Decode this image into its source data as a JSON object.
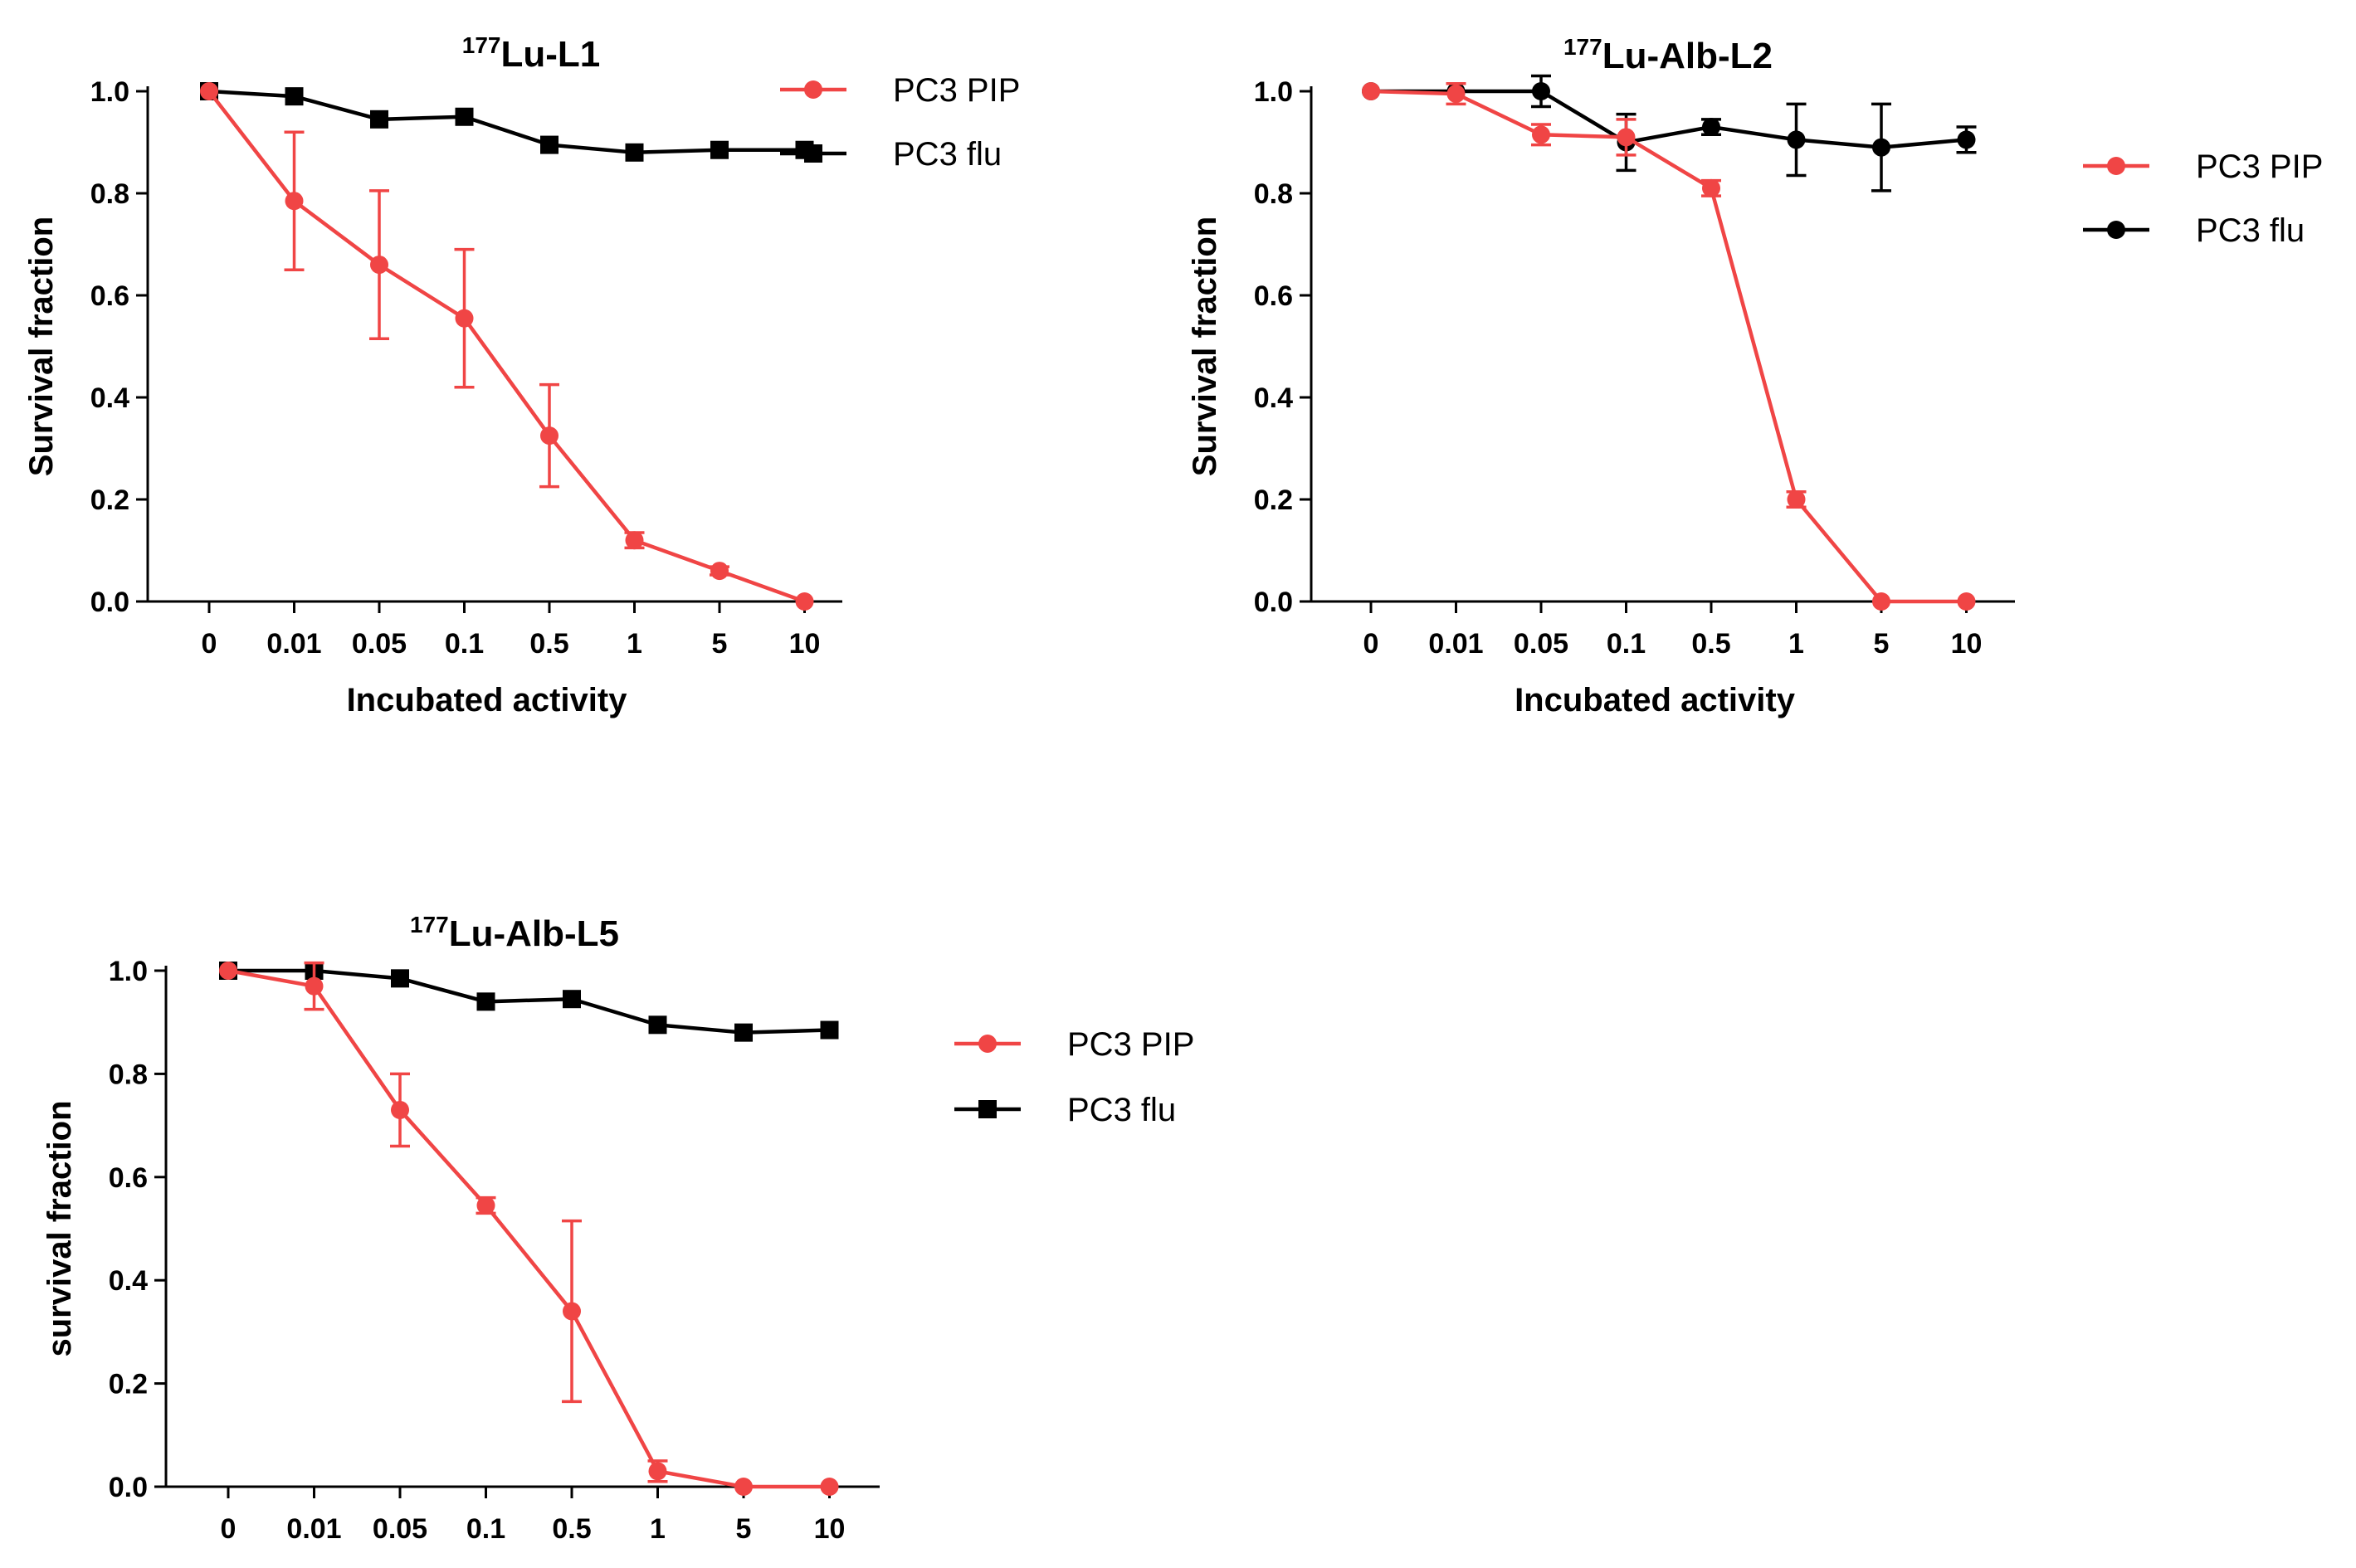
{
  "chart_data": [
    {
      "type": "line",
      "title_sup": "177",
      "title_main": "Lu-L1",
      "categories": [
        "0",
        "0.01",
        "0.05",
        "0.1",
        "0.5",
        "1",
        "5",
        "10"
      ],
      "xlabel": "Incubated activity",
      "ylabel": "Survival fraction",
      "ylim": [
        0,
        1.0
      ],
      "yticks": [
        "0.0",
        "0.2",
        "0.4",
        "0.6",
        "0.8",
        "1.0"
      ],
      "legend_position": "top-right",
      "series": [
        {
          "name": "PC3 PIP",
          "color": "#f04545",
          "marker": "circle",
          "values": [
            1.0,
            0.785,
            0.66,
            0.555,
            0.325,
            0.12,
            0.06,
            0.0
          ],
          "errors": [
            0.0,
            0.135,
            0.145,
            0.135,
            0.1,
            0.015,
            0.008,
            0.0
          ]
        },
        {
          "name": "PC3 flu",
          "color": "#000000",
          "marker": "square",
          "values": [
            1.0,
            0.99,
            0.945,
            0.95,
            0.895,
            0.88,
            0.885,
            0.885
          ],
          "errors": [
            0,
            0,
            0,
            0,
            0,
            0,
            0,
            0
          ]
        }
      ]
    },
    {
      "type": "line",
      "title_sup": "177",
      "title_main": "Lu-Alb-L2",
      "categories": [
        "0",
        "0.01",
        "0.05",
        "0.1",
        "0.5",
        "1",
        "5",
        "10"
      ],
      "xlabel": "Incubated activity",
      "ylabel": "Survival fraction",
      "ylim": [
        0,
        1.0
      ],
      "yticks": [
        "0.0",
        "0.2",
        "0.4",
        "0.6",
        "0.8",
        "1.0"
      ],
      "legend_position": "top-right",
      "series": [
        {
          "name": "PC3 PIP",
          "color": "#f04545",
          "marker": "circle",
          "values": [
            1.0,
            0.995,
            0.915,
            0.91,
            0.81,
            0.2,
            0.0,
            0.0
          ],
          "errors": [
            0.0,
            0.02,
            0.02,
            0.035,
            0.015,
            0.015,
            0.0,
            0.0
          ]
        },
        {
          "name": "PC3 flu",
          "color": "#000000",
          "marker": "circle",
          "values": [
            1.0,
            1.0,
            1.0,
            0.9,
            0.93,
            0.905,
            0.89,
            0.905
          ],
          "errors": [
            0.0,
            0.0,
            0.03,
            0.055,
            0.015,
            0.07,
            0.085,
            0.025
          ]
        }
      ]
    },
    {
      "type": "line",
      "title_sup": "177",
      "title_main": "Lu-Alb-L5",
      "categories": [
        "0",
        "0.01",
        "0.05",
        "0.1",
        "0.5",
        "1",
        "5",
        "10"
      ],
      "xlabel": "",
      "ylabel": "survival fraction",
      "ylim": [
        0,
        1.0
      ],
      "yticks": [
        "0.0",
        "0.2",
        "0.4",
        "0.6",
        "0.8",
        "1.0"
      ],
      "legend_position": "top-right",
      "series": [
        {
          "name": "PC3 PIP",
          "color": "#f04545",
          "marker": "circle",
          "values": [
            1.0,
            0.97,
            0.73,
            0.545,
            0.34,
            0.03,
            0.0,
            0.0
          ],
          "errors": [
            0.0,
            0.045,
            0.07,
            0.015,
            0.175,
            0.02,
            0.0,
            0.0
          ]
        },
        {
          "name": "PC3 flu",
          "color": "#000000",
          "marker": "square",
          "values": [
            1.0,
            1.0,
            0.985,
            0.94,
            0.945,
            0.895,
            0.88,
            0.885
          ],
          "errors": [
            0,
            0,
            0,
            0,
            0,
            0,
            0,
            0
          ]
        }
      ]
    }
  ]
}
